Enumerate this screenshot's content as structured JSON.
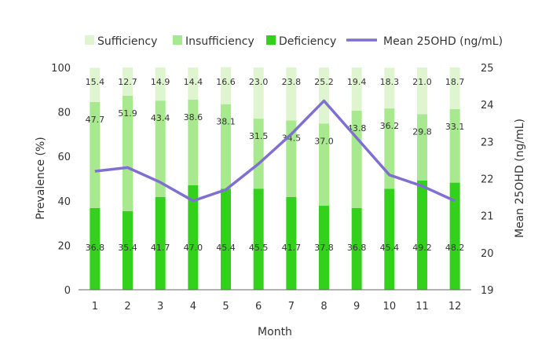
{
  "chart_data": {
    "type": "bar",
    "stacked": true,
    "categories": [
      "1",
      "2",
      "3",
      "4",
      "5",
      "6",
      "7",
      "8",
      "9",
      "10",
      "11",
      "12"
    ],
    "series": [
      {
        "name": "Deficiency",
        "color": "#33d11b",
        "values": [
          36.8,
          35.4,
          41.7,
          47.0,
          45.4,
          45.5,
          41.7,
          37.8,
          36.8,
          45.4,
          49.2,
          48.2
        ],
        "labels": [
          "36.8",
          "35.4",
          "41.7",
          "47.0",
          "45.4",
          "45.5",
          "41.7",
          "37.8",
          "36.8",
          "45.4",
          "49.2",
          "48.2"
        ]
      },
      {
        "name": "Insufficiency",
        "color": "#a8e88e",
        "values": [
          47.7,
          51.9,
          43.4,
          38.6,
          38.1,
          31.5,
          34.5,
          37.0,
          43.8,
          36.2,
          29.8,
          33.1
        ],
        "labels": [
          "47.7",
          "51.9",
          "43.4",
          "38.6",
          "38.1",
          "31.5",
          "34.5",
          "37.0",
          "43.8",
          "36.2",
          "29.8",
          "33.1"
        ]
      },
      {
        "name": "Sufficiency",
        "color": "#dff5d0",
        "values": [
          15.4,
          12.7,
          14.9,
          14.4,
          16.6,
          23.0,
          23.8,
          25.2,
          19.4,
          18.3,
          21.0,
          18.7
        ],
        "labels": [
          "15.4",
          "12.7",
          "14.9",
          "14.4",
          "16.6",
          "23.0",
          "23.8",
          "25.2",
          "19.4",
          "18.3",
          "21.0",
          "18.7"
        ]
      }
    ],
    "line_series": {
      "name": "Mean 25OHD (ng/mL)",
      "color": "#7f6fd1",
      "axis": "right",
      "values": [
        22.2,
        22.3,
        21.9,
        21.4,
        21.7,
        22.4,
        23.2,
        24.1,
        23.1,
        22.1,
        21.8,
        21.4
      ]
    },
    "xlabel": "Month",
    "ylabel": "Prevalence (%)",
    "y2label": "Mean 25OHD (ng/mL)",
    "ylim": [
      0,
      100
    ],
    "yticks": [
      "0",
      "20",
      "40",
      "60",
      "80",
      "100"
    ],
    "y2lim": [
      19,
      25
    ],
    "y2ticks": [
      "19",
      "20",
      "21",
      "22",
      "23",
      "24",
      "25"
    ],
    "legend_position": "top",
    "grid": false
  }
}
